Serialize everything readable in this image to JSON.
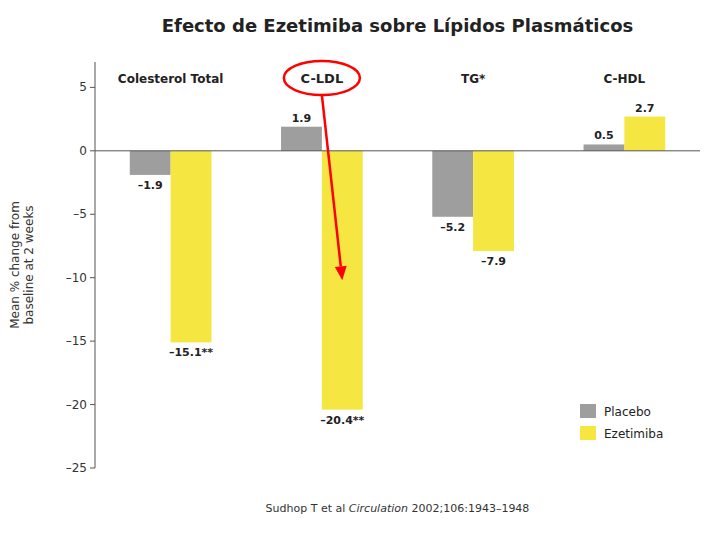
{
  "chart_data": {
    "type": "bar",
    "title": "Efecto de Ezetimiba sobre Lípidos Plasmáticos",
    "y_label": "Mean % change from\nbaseline at 2 weeks",
    "categories": [
      "Colesterol Total",
      "C-LDL",
      "TG*",
      "C-HDL"
    ],
    "series": [
      {
        "name": "Placebo",
        "color": "#9e9e9e",
        "values": [
          -1.9,
          1.9,
          -5.2,
          0.5
        ],
        "value_labels": [
          "–1.9",
          "1.9",
          "–5.2",
          "0.5"
        ]
      },
      {
        "name": "Ezetimiba",
        "color": "#f5e642",
        "values": [
          -15.1,
          -20.4,
          -7.9,
          2.7
        ],
        "value_labels": [
          "–15.1**",
          "–20.4**",
          "–7.9",
          "2.7"
        ]
      }
    ],
    "ylim": [
      -25,
      7
    ],
    "yticks": [
      5,
      0,
      {
        "value": -5,
        "label": "–5"
      },
      {
        "value": -10,
        "label": "–10"
      },
      {
        "value": -15,
        "label": "–15"
      },
      {
        "value": -20,
        "label": "–20"
      },
      {
        "value": -25,
        "label": "–25"
      }
    ],
    "grid": false,
    "legend": "lower right",
    "data_labels": true,
    "annotations": [
      {
        "text": "C-LDL",
        "category": "C-LDL",
        "series": "Ezetimiba",
        "color": "#ff0000"
      },
      {
        "parts": [
          {
            "text": "Sudhop T et al "
          },
          {
            "text": "Circulation",
            "font_style": "italic"
          },
          {
            "text": " 2002;106:1943–1948"
          }
        ]
      }
    ]
  }
}
